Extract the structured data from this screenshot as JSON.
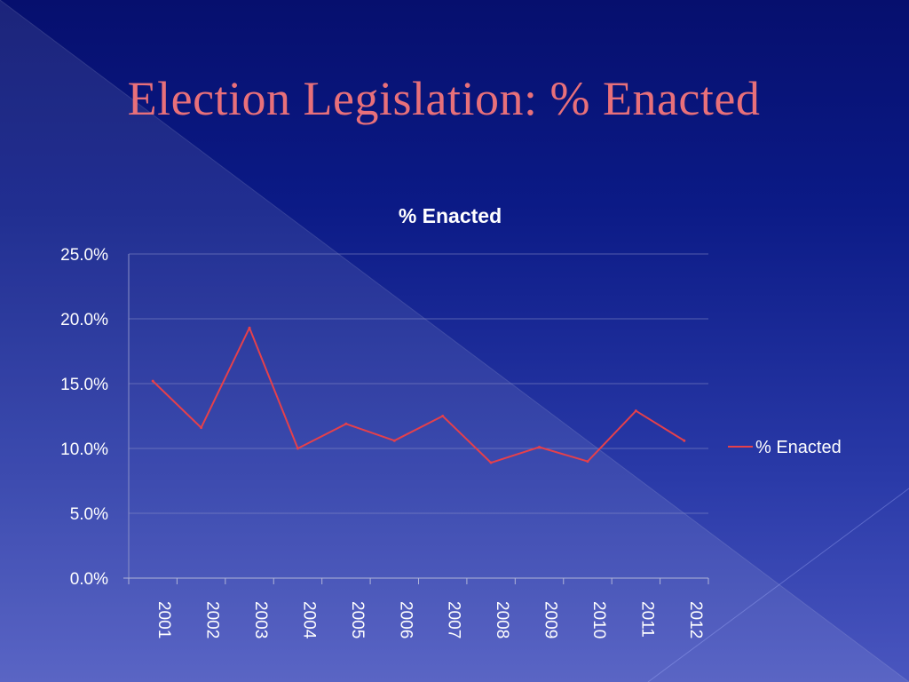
{
  "slide": {
    "title": "Election Legislation: % Enacted"
  },
  "chart_data": {
    "type": "line",
    "title": "% Enacted",
    "xlabel": "",
    "ylabel": "",
    "x": [
      "2001",
      "2002",
      "2003",
      "2004",
      "2005",
      "2006",
      "2007",
      "2008",
      "2009",
      "2010",
      "2011",
      "2012"
    ],
    "series": [
      {
        "name": "% Enacted",
        "color": "#e5404b",
        "values": [
          15.2,
          11.6,
          19.3,
          10.0,
          11.9,
          10.6,
          12.5,
          8.9,
          10.1,
          9.0,
          12.9,
          10.6
        ]
      }
    ],
    "ylim": [
      0,
      25
    ],
    "yticks": [
      "0.0%",
      "5.0%",
      "10.0%",
      "15.0%",
      "20.0%",
      "25.0%"
    ],
    "grid": true,
    "legend": "right"
  }
}
